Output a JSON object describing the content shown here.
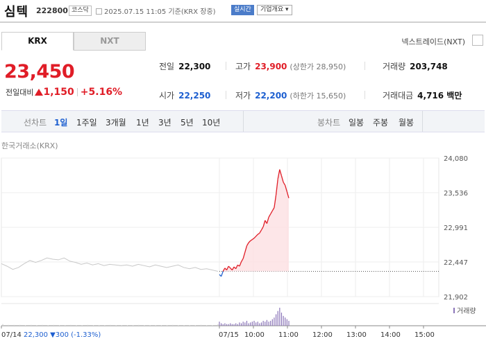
{
  "header": {
    "name": "심텍",
    "code": "222800",
    "market": "코스닥",
    "datetime": "2025.07.15 11:05 기준(KRX 장중)",
    "realtime_label": "실시간",
    "corp_info_label": "기업개요 ▾"
  },
  "exchange_tabs": [
    "KRX",
    "NXT"
  ],
  "nxt_link": "넥스트레이드(NXT)",
  "quote": {
    "price": "23,450",
    "change_label": "전일대비",
    "change": "1,150",
    "change_pct": "+5.16%"
  },
  "stats": {
    "prev_label": "전일",
    "prev": "22,300",
    "high_label": "고가",
    "high": "23,900",
    "upper_limit": "(상한가 28,950)",
    "volume_label": "거래량",
    "volume": "203,748",
    "open_label": "시가",
    "open": "22,250",
    "low_label": "저가",
    "low": "22,200",
    "lower_limit": "(하한가 15,650)",
    "amount_label": "거래대금",
    "amount": "4,716 백만"
  },
  "periods": {
    "line_chart_label": "선차트",
    "line_items": [
      "1일",
      "1주일",
      "3개월",
      "1년",
      "3년",
      "5년",
      "10년"
    ],
    "selected": "1일",
    "candle_chart_label": "봉차트",
    "candle_items": [
      "일봉",
      "주봉",
      "월봉"
    ]
  },
  "exchange_label": "한국거래소(KRX)",
  "volume_legend": "거래량",
  "prev_day_summary": {
    "date": "07/14",
    "close": "22,300",
    "change": "▼300",
    "pct": "(-1.33%)"
  },
  "colors": {
    "up": "#e01d27",
    "down": "#1d5fd0",
    "prev_day_line": "#c8c8c8",
    "fill": "#fde0e2"
  },
  "chart_data": {
    "type": "line",
    "y_ticks": [
      "24,080",
      "23,536",
      "22,991",
      "22,447",
      "21,902"
    ],
    "ylim": [
      21902,
      24080
    ],
    "x_ticks": [
      "07/14",
      "07/15",
      "10:00",
      "11:00",
      "12:00",
      "13:00",
      "14:00",
      "15:00"
    ],
    "reference_price": 22300,
    "series": [
      {
        "values": [
          22420,
          22380,
          22330,
          22360,
          22420,
          22470,
          22440,
          22470,
          22510,
          22490,
          22480,
          22510,
          22460,
          22440,
          22410,
          22430,
          22400,
          22420,
          22390,
          22410,
          22400,
          22390,
          22400,
          22380,
          22410,
          22390,
          22370,
          22400,
          22380,
          22360,
          22380,
          22400,
          22360,
          22340,
          22360,
          22330,
          22340,
          22320,
          22300
        ]
      },
      {
        "values": [
          22250,
          22220,
          22300,
          22350,
          22320,
          22380,
          22350,
          22320,
          22370,
          22340,
          22400,
          22380,
          22450,
          22500,
          22600,
          22700,
          22750,
          22780,
          22800,
          22820,
          22850,
          22880,
          22900,
          22950,
          23000,
          23100,
          23050,
          23150,
          23200,
          23250,
          23300,
          23500,
          23750,
          23900,
          23800,
          23700,
          23650,
          23550,
          23450
        ]
      }
    ],
    "volume": {
      "prev_day": [
        2,
        1,
        1,
        1,
        0.5,
        1,
        0.5,
        1,
        0.5,
        1,
        0.5,
        0.5,
        1,
        0.5,
        0.5,
        1,
        0.5,
        0.5,
        0.5,
        1,
        0.5,
        0.5,
        0.5,
        0.5,
        1,
        0.5,
        0.5,
        0.5,
        0.5,
        0.5,
        1,
        0.5,
        0.5,
        0.5,
        0.5,
        1,
        0.5,
        0.5,
        2
      ],
      "today": [
        5,
        3,
        2,
        3,
        2,
        2,
        3,
        2,
        2,
        3,
        2,
        4,
        3,
        5,
        4,
        6,
        3,
        4,
        5,
        6,
        4,
        5,
        3,
        4,
        6,
        5,
        7,
        5,
        6,
        8,
        10,
        14,
        18,
        22,
        16,
        12,
        10,
        8,
        6
      ]
    }
  }
}
